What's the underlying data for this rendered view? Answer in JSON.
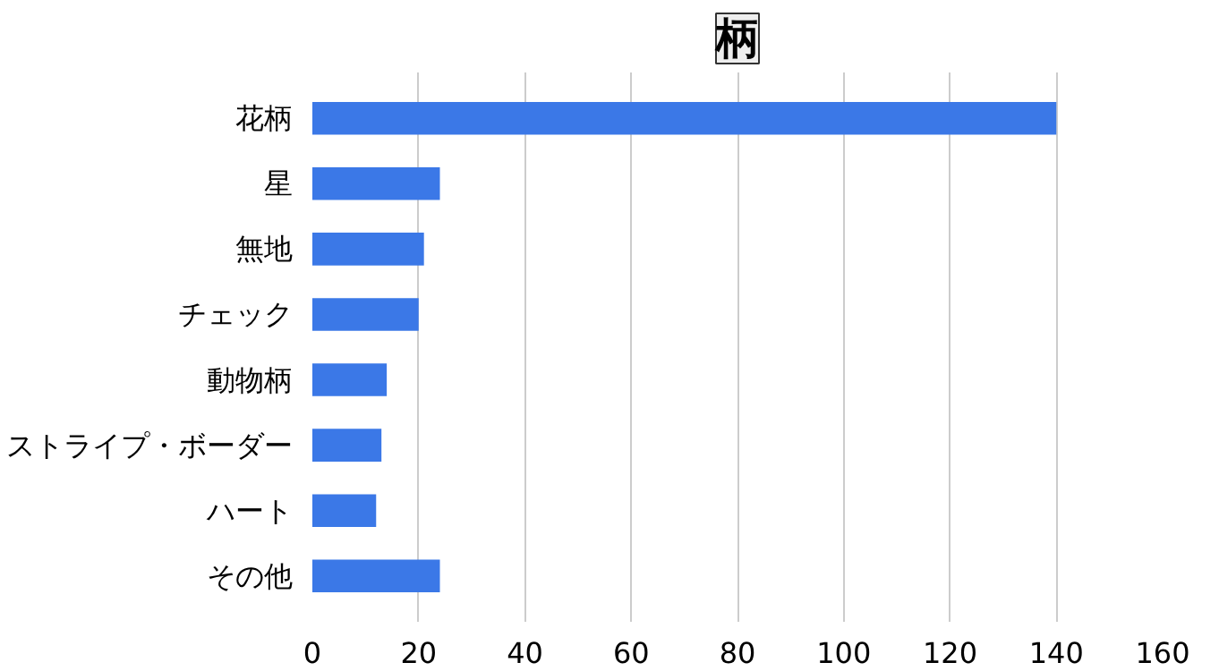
{
  "chart_data": {
    "type": "bar",
    "orientation": "horizontal",
    "title": "柄",
    "categories": [
      "花柄",
      "星",
      "無地",
      "チェック",
      "動物柄",
      "ストライプ・ボーダー",
      "ハート",
      "その他"
    ],
    "values": [
      140,
      24,
      21,
      20,
      14,
      13,
      12,
      24
    ],
    "color": "#3b78e7",
    "xlim": [
      0,
      160
    ],
    "xticks": [
      0,
      20,
      40,
      60,
      80,
      100,
      120,
      140,
      160
    ],
    "grid": "x"
  }
}
